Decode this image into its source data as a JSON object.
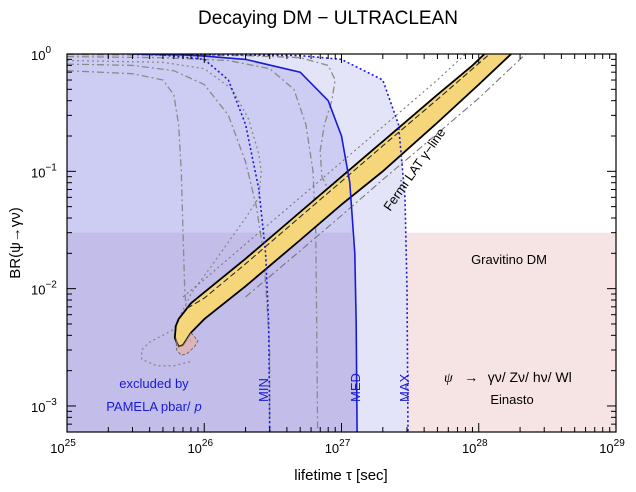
{
  "chart_data": {
    "type": "line",
    "title": "Decaying DM − ULTRACLEAN",
    "xlabel": "lifetime τ [sec]",
    "ylabel": "BR(ψ→γν)",
    "xscale": "log",
    "yscale": "log",
    "xlim": [
      1e+25,
      1e+29
    ],
    "ylim": [
      0.0006,
      1.0
    ],
    "grid": false,
    "x_ticks": [
      {
        "value": 1e+25,
        "base": "10",
        "exp": "25"
      },
      {
        "value": 1e+26,
        "base": "10",
        "exp": "26"
      },
      {
        "value": 1e+27,
        "base": "10",
        "exp": "27"
      },
      {
        "value": 1e+28,
        "base": "10",
        "exp": "28"
      },
      {
        "value": 1e+29,
        "base": "10",
        "exp": "29"
      }
    ],
    "y_ticks": [
      {
        "value": 0.001,
        "base": "10",
        "exp": "−3"
      },
      {
        "value": 0.01,
        "base": "10",
        "exp": "−2"
      },
      {
        "value": 0.1,
        "base": "10",
        "exp": "−1"
      },
      {
        "value": 1,
        "base": "10",
        "exp": "0"
      }
    ],
    "colors": {
      "fermi_band": "#f5d67a",
      "fermi_band_edge": "#000000",
      "gravitino_region": "#f6e4e4",
      "pamela_region": "#c9c9f2",
      "pamela_light": "#e4e4f8",
      "bound_line": "#1a1ad6",
      "grey_lines": "#888888",
      "overlap_region": "#c5bde6"
    },
    "series": [
      {
        "name": "MED",
        "style": "solid",
        "x": [
          3e+25,
          5e+25,
          7e+25,
          1e+26,
          2e+26,
          5e+26,
          8e+26,
          1e+27,
          1.15e+27,
          1.25e+27,
          1.28e+27,
          1.3e+27
        ],
        "y": [
          1.0,
          0.99,
          0.98,
          0.96,
          0.9,
          0.7,
          0.4,
          0.2,
          0.08,
          0.02,
          0.005,
          0.0006
        ]
      },
      {
        "name": "MIN",
        "style": "dotted",
        "x": [
          3e+25,
          5e+25,
          1e+26,
          1.5e+26,
          2e+26,
          2.5e+26,
          2.8e+26,
          2.95e+26,
          3e+26
        ],
        "y": [
          1.0,
          0.98,
          0.9,
          0.6,
          0.25,
          0.07,
          0.02,
          0.005,
          0.0006
        ]
      },
      {
        "name": "MAX",
        "style": "dotted",
        "x": [
          3e+25,
          1e+26,
          5e+26,
          1e+27,
          2e+27,
          2.6e+27,
          2.9e+27,
          3e+27,
          3.05e+27
        ],
        "y": [
          1.0,
          0.99,
          0.97,
          0.9,
          0.6,
          0.25,
          0.06,
          0.01,
          0.0006
        ]
      }
    ],
    "annotations": {
      "fermi": "Fermi LAT γ−line",
      "gravitino": "Gravitino DM",
      "pamela_line1": "excluded by",
      "pamela_line2": "PAMELA pbar/",
      "pamela_p": "p",
      "channel_psi": "ψ",
      "channel_arrow": "→",
      "channel_list": "γν/ Zν/ hν/ Wl",
      "profile": "Einasto",
      "min_label": "MIN",
      "med_label": "MED",
      "max_label": "MAX"
    }
  }
}
